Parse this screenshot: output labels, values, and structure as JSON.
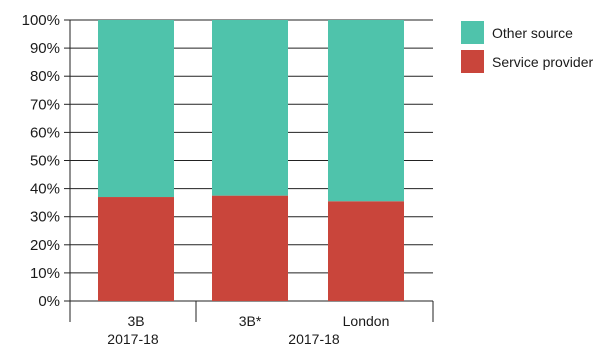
{
  "chart_data": {
    "type": "bar",
    "stacked": true,
    "categories": [
      "3B",
      "3B*",
      "London"
    ],
    "groups": [
      {
        "label": "2017-18",
        "categories": [
          "3B"
        ]
      },
      {
        "label": "2017-18",
        "categories": [
          "3B*",
          "London"
        ]
      }
    ],
    "series": [
      {
        "name": "Service provider",
        "values": [
          37,
          37.5,
          35.5
        ],
        "color": "#c9453b"
      },
      {
        "name": "Other source",
        "values": [
          63,
          62.5,
          64.5
        ],
        "color": "#4fc3ab"
      }
    ],
    "ylim": [
      0,
      100
    ],
    "yticks": [
      "0%",
      "10%",
      "20%",
      "30%",
      "40%",
      "50%",
      "60%",
      "70%",
      "80%",
      "90%",
      "100%"
    ],
    "grid": true,
    "legend_position": "top-right",
    "legend": [
      "Other source",
      "Service provider"
    ]
  }
}
